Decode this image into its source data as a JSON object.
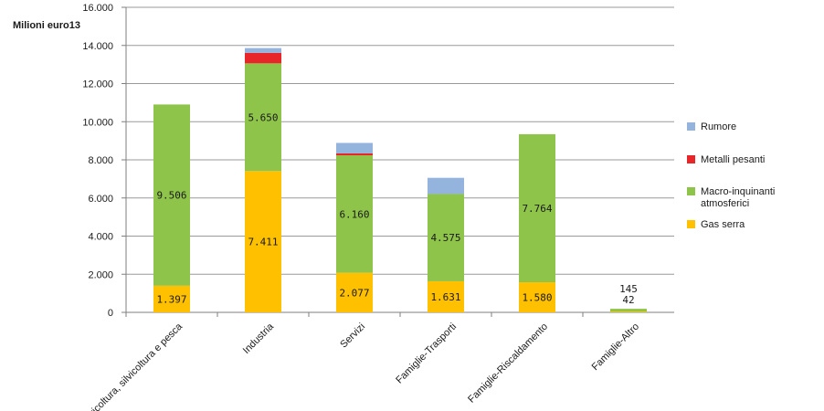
{
  "chart_data": {
    "type": "bar",
    "stacked": true,
    "title": "",
    "ylabel": "Milioni euro13",
    "xlabel": "",
    "ylim": [
      0,
      16000
    ],
    "y_ticks": [
      "0",
      "2.000",
      "4.000",
      "6.000",
      "8.000",
      "10.000",
      "12.000",
      "14.000",
      "16.000"
    ],
    "grid": "horizontal",
    "legend_position": "right",
    "categories": [
      "Agricoltura, silvicoltura e pesca",
      "Industria",
      "Servizi",
      "Famiglie-Trasporti",
      "Famiglie-Riscaldamento",
      "Famiglie-Altro"
    ],
    "series": [
      {
        "name": "Gas serra",
        "color": "#ffc000",
        "values": [
          1397,
          7411,
          2077,
          1631,
          1580,
          42
        ],
        "labels": [
          "1.397",
          "7.411",
          "2.077",
          "1.631",
          "1.580",
          "42"
        ]
      },
      {
        "name": "Macro-inquinanti atmosferici",
        "color": "#8fc44a",
        "values": [
          9506,
          5650,
          6160,
          4575,
          7764,
          145
        ],
        "labels": [
          "9.506",
          "5.650",
          "6.160",
          "4.575",
          "7.764",
          "145"
        ]
      },
      {
        "name": "Metalli pesanti",
        "color": "#e8262a",
        "values": [
          0,
          550,
          100,
          0,
          0,
          0
        ],
        "labels": [
          "",
          "",
          "",
          "",
          "",
          ""
        ]
      },
      {
        "name": "Rumore",
        "color": "#94b4dd",
        "values": [
          0,
          250,
          550,
          850,
          0,
          0
        ],
        "labels": [
          "",
          "",
          "",
          "",
          "",
          ""
        ]
      }
    ],
    "legend_order": [
      "Rumore",
      "Metalli pesanti",
      "Macro-inquinanti atmosferici",
      "Gas serra"
    ]
  }
}
